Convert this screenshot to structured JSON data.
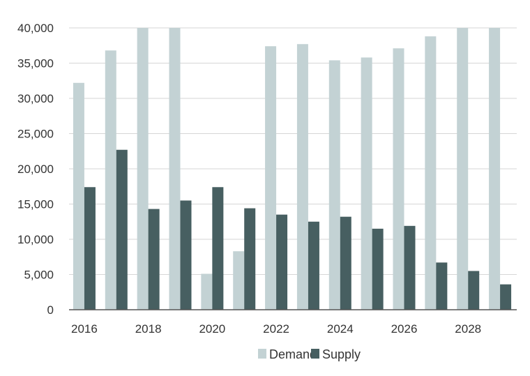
{
  "chart_data": {
    "type": "bar",
    "categories": [
      "2016",
      "2017",
      "2018",
      "2019",
      "2020",
      "2021",
      "2022",
      "2023",
      "2024",
      "2025",
      "2026",
      "2027",
      "2028",
      "2029"
    ],
    "x_tick_labels": [
      "2016",
      "2018",
      "2020",
      "2022",
      "2024",
      "2026",
      "2028"
    ],
    "y_tick_labels": [
      "0",
      "5,000",
      "10,000",
      "15,000",
      "20,000",
      "25,000",
      "30,000",
      "35,000",
      "40,000"
    ],
    "y_ticks": [
      0,
      5000,
      10000,
      15000,
      20000,
      25000,
      30000,
      35000,
      40000
    ],
    "ylim": [
      0,
      40000
    ],
    "series": [
      {
        "name": "Demand",
        "color": "#c3d2d4",
        "values": [
          32200,
          36800,
          40000,
          40000,
          5100,
          8300,
          37400,
          37700,
          35400,
          35800,
          37100,
          38800,
          40000,
          40000
        ]
      },
      {
        "name": "Supply",
        "color": "#475f61",
        "values": [
          17400,
          22700,
          14300,
          15500,
          17400,
          14400,
          13500,
          12500,
          13200,
          11500,
          11900,
          6700,
          5500,
          3600
        ]
      }
    ],
    "grid": true,
    "legend_position": "bottom-center",
    "title": "",
    "xlabel": "",
    "ylabel": ""
  }
}
